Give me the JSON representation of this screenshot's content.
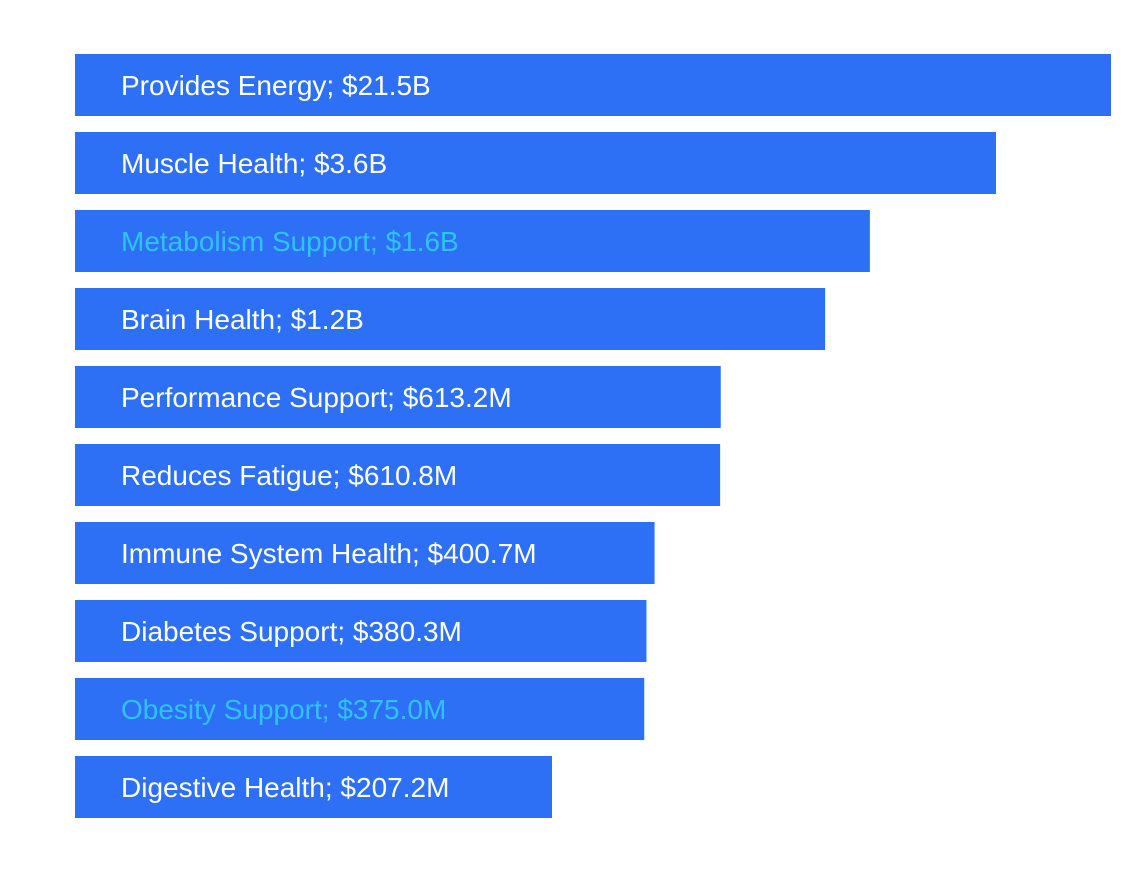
{
  "chart_data": {
    "type": "bar",
    "orientation": "horizontal",
    "grid": false,
    "legend": "none",
    "colors": {
      "bar": "#2d6ff5",
      "label_default": "#ffffff",
      "label_highlight": "#2ec4f2"
    },
    "categories": [
      "Provides Energy",
      "Muscle Health",
      "Metabolism Support",
      "Brain Health",
      "Performance Support",
      "Reduces Fatigue",
      "Immune System Health",
      "Diabetes Support",
      "Obesity Support",
      "Digestive Health"
    ],
    "labels": [
      "Provides Energy; $21.5B",
      "Muscle Health; $3.6B",
      "Metabolism Support; $1.6B",
      "Brain Health; $1.2B",
      "Performance Support; $613.2M",
      "Reduces Fatigue; $610.8M",
      "Immune System Health; $400.7M",
      "Diabetes Support; $380.3M",
      "Obesity Support; $375.0M",
      "Digestive Health; $207.2M"
    ],
    "values": [
      21500,
      3600,
      1600,
      1200,
      613.2,
      610.8,
      400.7,
      380.3,
      375.0,
      207.2
    ],
    "unit": "$M",
    "highlighted": [
      "Metabolism Support",
      "Obesity Support"
    ]
  }
}
